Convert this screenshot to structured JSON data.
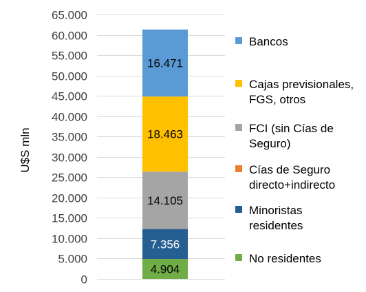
{
  "chart_data": {
    "type": "bar",
    "stacked": true,
    "ylabel": "U$S mln",
    "ylim": [
      0,
      65000
    ],
    "yticks": [
      0,
      5000,
      10000,
      15000,
      20000,
      25000,
      30000,
      35000,
      40000,
      45000,
      50000,
      55000,
      60000,
      65000
    ],
    "ytick_labels": [
      "0",
      "5.000",
      "10.000",
      "15.000",
      "20.000",
      "25.000",
      "30.000",
      "35.000",
      "40.000",
      "45.000",
      "50.000",
      "55.000",
      "60.000",
      "65.000"
    ],
    "grid": true,
    "legend_position": "right",
    "series": [
      {
        "name": "No residentes",
        "value": 4904,
        "label": "4.904",
        "color": "#70AD47",
        "label_color": "#000000"
      },
      {
        "name": "Minoristas residentes",
        "value": 7356,
        "label": "7.356",
        "color": "#255E91",
        "label_color": "#ffffff"
      },
      {
        "name": "Cías de Seguro directo+indirecto",
        "value": 0,
        "label": "",
        "color": "#ED7D31",
        "label_color": "#000000"
      },
      {
        "name": "FCI (sin Cías de Seguro)",
        "value": 14105,
        "label": "14.105",
        "color": "#A5A5A5",
        "label_color": "#000000"
      },
      {
        "name": "Cajas previsionales, FGS, otros",
        "value": 18463,
        "label": "18.463",
        "color": "#FFC000",
        "label_color": "#000000"
      },
      {
        "name": "Bancos",
        "value": 16471,
        "label": "16.471",
        "color": "#5B9BD5",
        "label_color": "#000000"
      }
    ],
    "legend": [
      {
        "series": "Bancos",
        "lines": [
          "Bancos"
        ]
      },
      {
        "series": "Cajas previsionales, FGS, otros",
        "lines": [
          "Cajas previsionales,",
          "FGS, otros"
        ]
      },
      {
        "series": "FCI (sin Cías de Seguro)",
        "lines": [
          "FCI (sin Cías de",
          "Seguro)"
        ]
      },
      {
        "series": "Cías de Seguro directo+indirecto",
        "lines": [
          "Cías de Seguro",
          "directo+indirecto"
        ]
      },
      {
        "series": "Minoristas residentes",
        "lines": [
          "Minoristas",
          "residentes"
        ]
      },
      {
        "series": "No residentes",
        "lines": [
          "No residentes"
        ]
      }
    ]
  },
  "colors": {
    "grid": "#D9D9D9",
    "tick_text": "#404040"
  }
}
